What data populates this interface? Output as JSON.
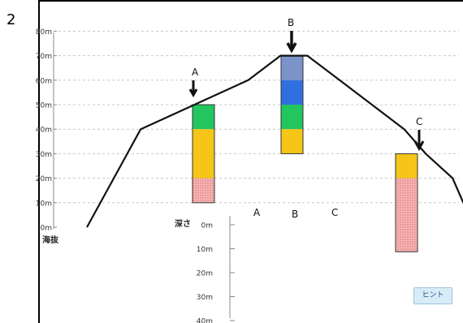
{
  "question_number": "2",
  "elevation_axis": {
    "ticks": [
      "80m",
      "70m",
      "60m",
      "50m",
      "40m",
      "30m",
      "20m",
      "10m",
      "0m"
    ],
    "label": "海抜"
  },
  "depth_axis": {
    "label": "深さ",
    "ticks": [
      "0m",
      "10m",
      "20m",
      "30m",
      "40m"
    ]
  },
  "site_labels": [
    "A",
    "B",
    "C"
  ],
  "column_labels": [
    "A",
    "B",
    "C"
  ],
  "mountain_profile": [
    [
      0,
      0
    ],
    [
      5,
      20
    ],
    [
      10,
      40
    ],
    [
      20,
      50
    ],
    [
      30,
      60
    ],
    [
      36,
      70
    ],
    [
      41,
      70
    ],
    [
      47,
      60
    ],
    [
      53,
      50
    ],
    [
      59,
      40
    ],
    [
      63,
      30
    ],
    [
      68,
      20
    ],
    [
      72,
      0
    ]
  ],
  "columns": [
    {
      "site": "A",
      "layers": [
        {
          "from": 50,
          "to": 40,
          "color": "#22c55e"
        },
        {
          "from": 40,
          "to": 20,
          "color": "#f5c518"
        },
        {
          "from": 20,
          "to": 10,
          "color": "#f2a5a5",
          "pattern": "dots"
        }
      ]
    },
    {
      "site": "B",
      "layers": [
        {
          "from": 70,
          "to": 60,
          "color": "#7b93c9"
        },
        {
          "from": 60,
          "to": 50,
          "color": "#2f6fe0"
        },
        {
          "from": 50,
          "to": 40,
          "color": "#22c55e"
        },
        {
          "from": 40,
          "to": 30,
          "color": "#f5c518"
        }
      ]
    },
    {
      "site": "C",
      "layers": [
        {
          "from": 30,
          "to": 20,
          "color": "#f5c518"
        },
        {
          "from": 20,
          "to": -10,
          "color": "#f2a5a5",
          "pattern": "dots"
        }
      ]
    }
  ],
  "hint_button_label": "ヒント"
}
